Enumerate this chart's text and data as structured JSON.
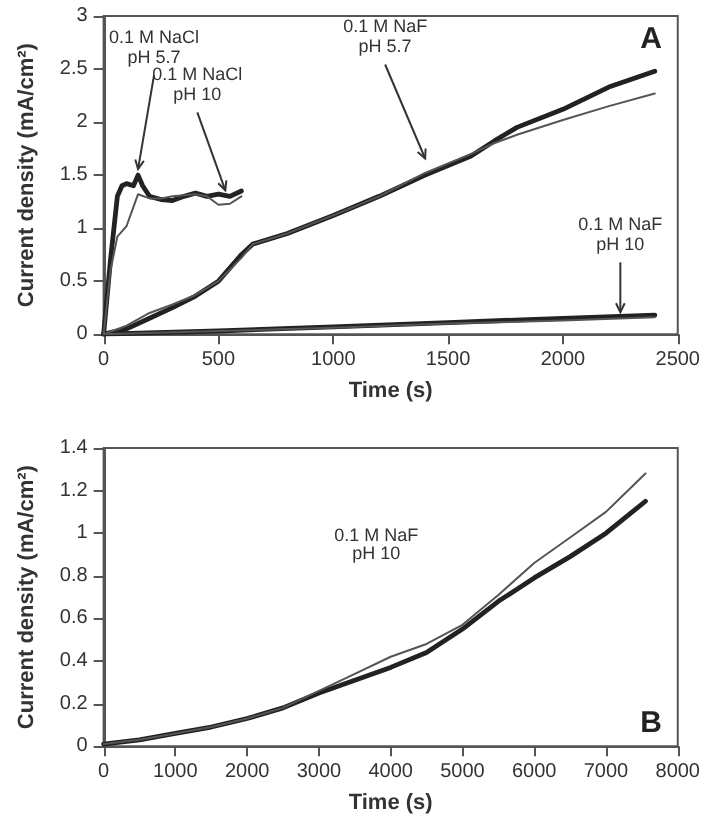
{
  "chart_data": [
    {
      "type": "line",
      "xlabel": "Time (s)",
      "ylabel": "Current density (mA/cm²)",
      "xlim": [
        0,
        2500
      ],
      "xticks": [
        0,
        500,
        1000,
        1500,
        2000,
        2500
      ],
      "ylim": [
        0,
        3
      ],
      "yticks": [
        0,
        0.5,
        1,
        1.5,
        2,
        2.5,
        3
      ],
      "marker": "none",
      "line_style": "solid",
      "annotations": [
        {
          "text": "0.1 M NaCl\npH 5.7",
          "x": 150,
          "y": 1.5
        },
        {
          "text": "0.1 M NaCl\npH 10",
          "x": 530,
          "y": 1.3
        },
        {
          "text": "0.1 M NaF\npH 5.7",
          "x": 1400,
          "y": 1.6
        },
        {
          "text": "0.1 M NaF\npH 10",
          "x": 2250,
          "y": 0.15
        },
        "A"
      ],
      "series": [
        {
          "color": "#222222",
          "x": [
            0,
            30,
            60,
            80,
            100,
            130,
            150,
            170,
            200,
            250,
            300,
            350,
            400,
            450,
            500,
            550,
            600
          ],
          "values": [
            0,
            0.7,
            1.3,
            1.4,
            1.42,
            1.4,
            1.5,
            1.4,
            1.3,
            1.27,
            1.26,
            1.3,
            1.33,
            1.3,
            1.32,
            1.3,
            1.35
          ]
        },
        {
          "color": "#555555",
          "x": [
            0,
            30,
            60,
            80,
            100,
            130,
            150,
            200,
            250,
            300,
            400,
            450,
            500,
            550,
            600
          ],
          "values": [
            0,
            0.6,
            0.92,
            0.97,
            1.02,
            1.2,
            1.32,
            1.28,
            1.28,
            1.3,
            1.32,
            1.3,
            1.22,
            1.23,
            1.3
          ]
        },
        {
          "color": "#222222",
          "x": [
            0,
            100,
            200,
            300,
            400,
            500,
            600,
            650,
            800,
            1000,
            1200,
            1400,
            1600,
            1700,
            1800,
            2000,
            2200,
            2400
          ],
          "values": [
            0,
            0.05,
            0.15,
            0.25,
            0.36,
            0.5,
            0.75,
            0.85,
            0.95,
            1.12,
            1.3,
            1.5,
            1.68,
            1.82,
            1.95,
            2.12,
            2.33,
            2.48
          ]
        },
        {
          "color": "#555555",
          "x": [
            0,
            100,
            200,
            300,
            400,
            500,
            600,
            650,
            800,
            1000,
            1200,
            1400,
            1600,
            1700,
            1800,
            2000,
            2200,
            2400
          ],
          "values": [
            0,
            0.08,
            0.2,
            0.28,
            0.37,
            0.5,
            0.72,
            0.85,
            0.95,
            1.12,
            1.3,
            1.52,
            1.7,
            1.8,
            1.88,
            2.02,
            2.15,
            2.27
          ]
        },
        {
          "color": "#222222",
          "x": [
            0,
            500,
            1000,
            1500,
            2000,
            2400
          ],
          "values": [
            0,
            0.03,
            0.07,
            0.11,
            0.15,
            0.18
          ]
        },
        {
          "color": "#555555",
          "x": [
            0,
            500,
            1000,
            1500,
            2000,
            2400
          ],
          "values": [
            0,
            0.03,
            0.06,
            0.1,
            0.13,
            0.16
          ]
        }
      ]
    },
    {
      "type": "line",
      "xlabel": "Time (s)",
      "ylabel": "Current density (mA/cm²)",
      "xlim": [
        0,
        8000
      ],
      "xticks": [
        0,
        1000,
        2000,
        3000,
        4000,
        5000,
        6000,
        7000,
        8000
      ],
      "ylim": [
        0,
        1.4
      ],
      "yticks": [
        0,
        0.2,
        0.4,
        0.6,
        0.8,
        1,
        1.2,
        1.4
      ],
      "marker": "none",
      "line_style": "solid",
      "annotations": [
        "0.1 M NaF\npH 10",
        "B"
      ],
      "series": [
        {
          "color": "#222222",
          "x": [
            0,
            500,
            1000,
            1500,
            2000,
            2500,
            3000,
            3500,
            4000,
            4500,
            5000,
            5500,
            6000,
            6500,
            7000,
            7550
          ],
          "values": [
            0.01,
            0.03,
            0.06,
            0.09,
            0.13,
            0.18,
            0.25,
            0.31,
            0.37,
            0.44,
            0.55,
            0.68,
            0.79,
            0.89,
            1.0,
            1.15
          ]
        },
        {
          "color": "#555555",
          "x": [
            0,
            500,
            1000,
            1500,
            2000,
            2500,
            3000,
            3500,
            4000,
            4500,
            5000,
            5500,
            6000,
            6500,
            7000,
            7550
          ],
          "values": [
            0.01,
            0.03,
            0.06,
            0.09,
            0.13,
            0.18,
            0.26,
            0.34,
            0.42,
            0.48,
            0.57,
            0.71,
            0.86,
            0.98,
            1.1,
            1.28
          ]
        }
      ]
    }
  ]
}
